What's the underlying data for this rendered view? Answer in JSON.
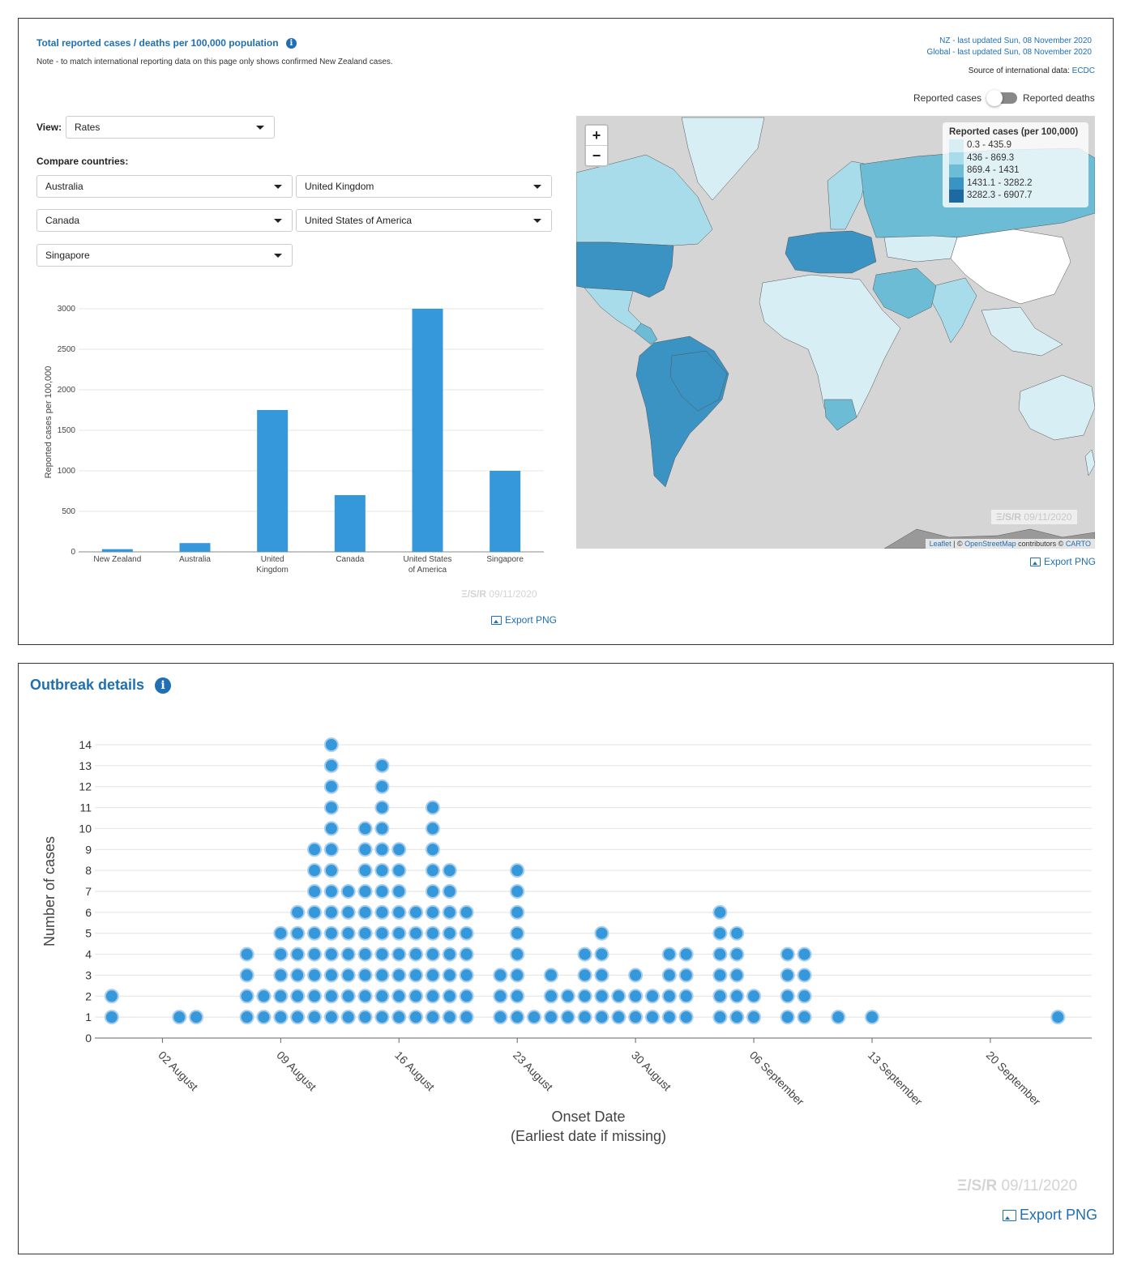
{
  "top_panel": {
    "title": "Total reported cases / deaths per 100,000 population",
    "note": "Note - to match international reporting data on this page only shows confirmed New Zealand cases.",
    "nz_updated": "NZ - last updated Sun, 08 November 2020",
    "global_updated": "Global - last updated Sun, 08 November 2020",
    "source_label": "Source of international data:",
    "source_link": "ECDC",
    "toggle_left": "Reported cases",
    "toggle_right": "Reported deaths",
    "view_label": "View:",
    "view_value": "Rates",
    "compare_label": "Compare countries:",
    "countries": [
      "Australia",
      "United Kingdom",
      "Canada",
      "United States of America",
      "Singapore"
    ],
    "watermark": "ESR 09/11/2020",
    "watermark_prefix": "Ξ/S/R",
    "watermark_date": "09/11/2020",
    "export_label": "Export PNG"
  },
  "map": {
    "zoom_in": "+",
    "zoom_out": "−",
    "legend_title": "Reported cases (per 100,000)",
    "legend_items": [
      {
        "label": "0.3 - 435.9",
        "color": "#d7eef5"
      },
      {
        "label": "436 - 869.3",
        "color": "#a9dcea"
      },
      {
        "label": "869.4 - 1431",
        "color": "#6cbcd6"
      },
      {
        "label": "1431.1 - 3282.2",
        "color": "#3a93c2"
      },
      {
        "label": "3282.3 - 6907.7",
        "color": "#1c6aa1"
      }
    ],
    "attribution_leaflet": "Leaflet",
    "attribution_sep": " | © ",
    "attribution_osm": "OpenStreetMap",
    "attribution_contrib": " contributors © ",
    "attribution_carto": "CARTO",
    "watermark_date": "09/11/2020",
    "export_label": "Export PNG"
  },
  "bottom_panel": {
    "title": "Outbreak details",
    "watermark_prefix": "Ξ/S/R",
    "watermark_date": "09/11/2020",
    "export_label": "Export PNG"
  },
  "chart_data": [
    {
      "type": "bar",
      "categories": [
        "New Zealand",
        "Australia",
        "United Kingdom",
        "Canada",
        "United States of America",
        "Singapore"
      ],
      "category_lines": [
        [
          "New Zealand"
        ],
        [
          "Australia"
        ],
        [
          "United",
          "Kingdom"
        ],
        [
          "Canada"
        ],
        [
          "United States",
          "of America"
        ],
        [
          "Singapore"
        ]
      ],
      "values": [
        33,
        108,
        1750,
        700,
        3000,
        1000
      ],
      "ylabel": "Reported cases per 100,000",
      "yticks": [
        0,
        500,
        1000,
        1500,
        2000,
        2500,
        3000
      ],
      "ylim": [
        0,
        3000
      ],
      "color": "#3498db",
      "grid": true
    },
    {
      "type": "scatter",
      "subtype": "dot-stack",
      "xlabel": "Onset Date",
      "xlabel2": "(Earliest date if missing)",
      "ylabel": "Number of cases",
      "yticks": [
        0,
        1,
        2,
        3,
        4,
        5,
        6,
        7,
        8,
        9,
        10,
        11,
        12,
        13,
        14
      ],
      "ylim": [
        0,
        14
      ],
      "xlim": [
        "2020-07-29",
        "2020-09-26"
      ],
      "xticks": [
        {
          "date": "2020-08-02",
          "label": "02 August"
        },
        {
          "date": "2020-08-09",
          "label": "09 August"
        },
        {
          "date": "2020-08-16",
          "label": "16 August"
        },
        {
          "date": "2020-08-23",
          "label": "23 August"
        },
        {
          "date": "2020-08-30",
          "label": "30 August"
        },
        {
          "date": "2020-09-06",
          "label": "06 September"
        },
        {
          "date": "2020-09-13",
          "label": "13 September"
        },
        {
          "date": "2020-09-20",
          "label": "20 September"
        }
      ],
      "color": "#3498db",
      "grid": true,
      "points": [
        {
          "date": "2020-07-30",
          "count": 2
        },
        {
          "date": "2020-08-03",
          "count": 1
        },
        {
          "date": "2020-08-04",
          "count": 1
        },
        {
          "date": "2020-08-07",
          "count": 4
        },
        {
          "date": "2020-08-08",
          "count": 2
        },
        {
          "date": "2020-08-09",
          "count": 5
        },
        {
          "date": "2020-08-10",
          "count": 6
        },
        {
          "date": "2020-08-11",
          "count": 9
        },
        {
          "date": "2020-08-12",
          "count": 14
        },
        {
          "date": "2020-08-13",
          "count": 7
        },
        {
          "date": "2020-08-14",
          "count": 10
        },
        {
          "date": "2020-08-15",
          "count": 13
        },
        {
          "date": "2020-08-16",
          "count": 9
        },
        {
          "date": "2020-08-17",
          "count": 6
        },
        {
          "date": "2020-08-18",
          "count": 11
        },
        {
          "date": "2020-08-19",
          "count": 8
        },
        {
          "date": "2020-08-20",
          "count": 6
        },
        {
          "date": "2020-08-22",
          "count": 3
        },
        {
          "date": "2020-08-23",
          "count": 8
        },
        {
          "date": "2020-08-24",
          "count": 1
        },
        {
          "date": "2020-08-25",
          "count": 3
        },
        {
          "date": "2020-08-26",
          "count": 2
        },
        {
          "date": "2020-08-27",
          "count": 4
        },
        {
          "date": "2020-08-28",
          "count": 5
        },
        {
          "date": "2020-08-29",
          "count": 2
        },
        {
          "date": "2020-08-30",
          "count": 3
        },
        {
          "date": "2020-08-31",
          "count": 2
        },
        {
          "date": "2020-09-01",
          "count": 4
        },
        {
          "date": "2020-09-02",
          "count": 4
        },
        {
          "date": "2020-09-04",
          "count": 6
        },
        {
          "date": "2020-09-05",
          "count": 5
        },
        {
          "date": "2020-09-06",
          "count": 2
        },
        {
          "date": "2020-09-08",
          "count": 4
        },
        {
          "date": "2020-09-09",
          "count": 4
        },
        {
          "date": "2020-09-11",
          "count": 1
        },
        {
          "date": "2020-09-13",
          "count": 1
        },
        {
          "date": "2020-09-24",
          "count": 1
        }
      ]
    }
  ]
}
